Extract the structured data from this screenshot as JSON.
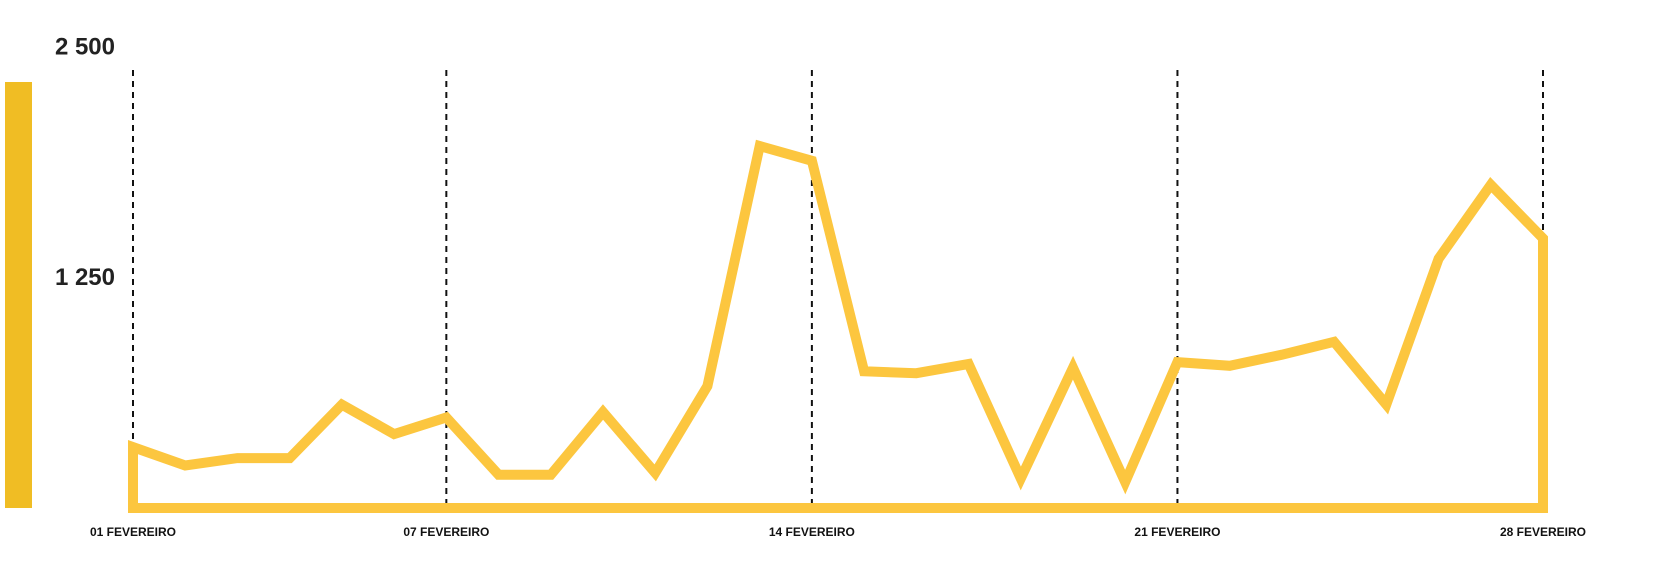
{
  "chart_data": {
    "type": "area",
    "title": "",
    "xlabel": "",
    "ylabel": "",
    "ylim": [
      0,
      3000
    ],
    "yticks": [
      {
        "value": 1250,
        "label": "1 250"
      },
      {
        "value": 2500,
        "label": "2 500"
      }
    ],
    "xticks": [
      {
        "day": 1,
        "label": "01 FEVEREIRO"
      },
      {
        "day": 7,
        "label": "07 FEVEREIRO"
      },
      {
        "day": 14,
        "label": "14 FEVEREIRO"
      },
      {
        "day": 21,
        "label": "21 FEVEREIRO"
      },
      {
        "day": 28,
        "label": "28 FEVEREIRO"
      }
    ],
    "x_range": [
      1,
      28
    ],
    "grid": "vertical dashed lines at x ticks",
    "colors": {
      "series": "#fcc63f",
      "accent_bar": "#f0bd24",
      "grid": "#111111"
    },
    "series": [
      {
        "x": [
          1,
          2,
          3,
          4,
          5,
          6,
          7,
          8,
          9,
          10,
          11,
          12,
          13,
          14,
          15,
          16,
          17,
          18,
          19,
          20,
          21,
          22,
          23,
          24,
          25,
          26,
          27,
          28
        ],
        "values": [
          330,
          230,
          270,
          270,
          560,
          400,
          490,
          180,
          180,
          520,
          190,
          660,
          1960,
          1880,
          740,
          730,
          780,
          160,
          760,
          140,
          790,
          770,
          830,
          900,
          560,
          1350,
          1750,
          1460
        ]
      }
    ]
  }
}
